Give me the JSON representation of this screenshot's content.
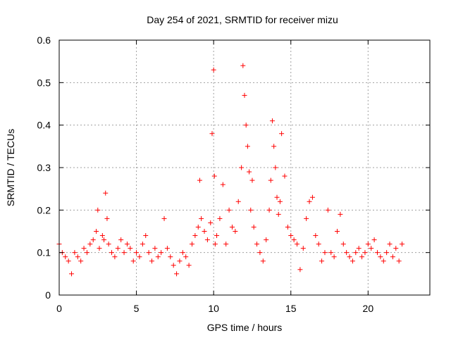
{
  "chart_data": {
    "type": "scatter",
    "title": "Day 254 of 2021, SRMTID for receiver mizu",
    "xlabel": "GPS time / hours",
    "ylabel": "SRMTID / TECUs",
    "xlim": [
      0,
      24
    ],
    "ylim": [
      0,
      0.6
    ],
    "xticks": [
      0,
      5,
      10,
      15,
      20
    ],
    "xtick_labels": [
      "0",
      "5",
      "10",
      "15",
      "20"
    ],
    "yticks": [
      0,
      0.1,
      0.2,
      0.3,
      0.4,
      0.5,
      0.6
    ],
    "ytick_labels": [
      "0",
      "0.1",
      "0.2",
      "0.3",
      "0.4",
      "0.5",
      "0.6"
    ],
    "grid": true,
    "marker": "+",
    "color": "#ff0000",
    "series": [
      {
        "name": "SRMTID",
        "x": [
          0.0,
          0.2,
          0.4,
          0.6,
          0.8,
          1.0,
          1.2,
          1.4,
          1.6,
          1.8,
          2.0,
          2.2,
          2.4,
          2.5,
          2.6,
          2.8,
          2.9,
          3.0,
          3.1,
          3.2,
          3.4,
          3.6,
          3.8,
          4.0,
          4.2,
          4.4,
          4.6,
          4.8,
          5.0,
          5.2,
          5.4,
          5.6,
          5.8,
          6.0,
          6.2,
          6.4,
          6.6,
          6.8,
          7.0,
          7.2,
          7.4,
          7.6,
          7.8,
          8.0,
          8.2,
          8.4,
          8.6,
          8.8,
          9.0,
          9.1,
          9.2,
          9.4,
          9.6,
          9.8,
          9.9,
          10.0,
          10.05,
          10.1,
          10.2,
          10.4,
          10.6,
          10.8,
          11.0,
          11.2,
          11.4,
          11.6,
          11.8,
          11.9,
          12.0,
          12.1,
          12.2,
          12.3,
          12.4,
          12.5,
          12.6,
          12.8,
          13.0,
          13.2,
          13.4,
          13.6,
          13.7,
          13.8,
          13.9,
          14.0,
          14.1,
          14.2,
          14.3,
          14.4,
          14.6,
          14.8,
          15.0,
          15.2,
          15.4,
          15.6,
          15.8,
          16.0,
          16.2,
          16.4,
          16.6,
          16.8,
          17.0,
          17.2,
          17.4,
          17.6,
          17.8,
          18.0,
          18.2,
          18.4,
          18.6,
          18.8,
          19.0,
          19.2,
          19.4,
          19.6,
          19.8,
          20.0,
          20.2,
          20.4,
          20.6,
          20.8,
          21.0,
          21.2,
          21.4,
          21.6,
          21.8,
          22.0,
          22.2
        ],
        "y": [
          0.12,
          0.1,
          0.09,
          0.08,
          0.05,
          0.1,
          0.09,
          0.08,
          0.11,
          0.1,
          0.12,
          0.13,
          0.15,
          0.2,
          0.11,
          0.14,
          0.13,
          0.24,
          0.18,
          0.12,
          0.1,
          0.09,
          0.11,
          0.13,
          0.1,
          0.12,
          0.11,
          0.08,
          0.1,
          0.09,
          0.12,
          0.14,
          0.1,
          0.08,
          0.11,
          0.09,
          0.1,
          0.18,
          0.11,
          0.09,
          0.07,
          0.05,
          0.08,
          0.1,
          0.09,
          0.07,
          0.12,
          0.14,
          0.16,
          0.27,
          0.18,
          0.15,
          0.13,
          0.17,
          0.38,
          0.53,
          0.28,
          0.12,
          0.14,
          0.18,
          0.26,
          0.12,
          0.2,
          0.16,
          0.15,
          0.22,
          0.3,
          0.54,
          0.47,
          0.4,
          0.35,
          0.29,
          0.2,
          0.27,
          0.16,
          0.12,
          0.1,
          0.08,
          0.13,
          0.2,
          0.27,
          0.41,
          0.35,
          0.3,
          0.23,
          0.19,
          0.22,
          0.38,
          0.28,
          0.16,
          0.14,
          0.13,
          0.12,
          0.06,
          0.11,
          0.18,
          0.22,
          0.23,
          0.14,
          0.12,
          0.08,
          0.1,
          0.2,
          0.1,
          0.09,
          0.15,
          0.19,
          0.12,
          0.1,
          0.09,
          0.08,
          0.1,
          0.11,
          0.09,
          0.1,
          0.12,
          0.11,
          0.13,
          0.1,
          0.09,
          0.08,
          0.1,
          0.12,
          0.09,
          0.11,
          0.08,
          0.12
        ]
      }
    ]
  }
}
